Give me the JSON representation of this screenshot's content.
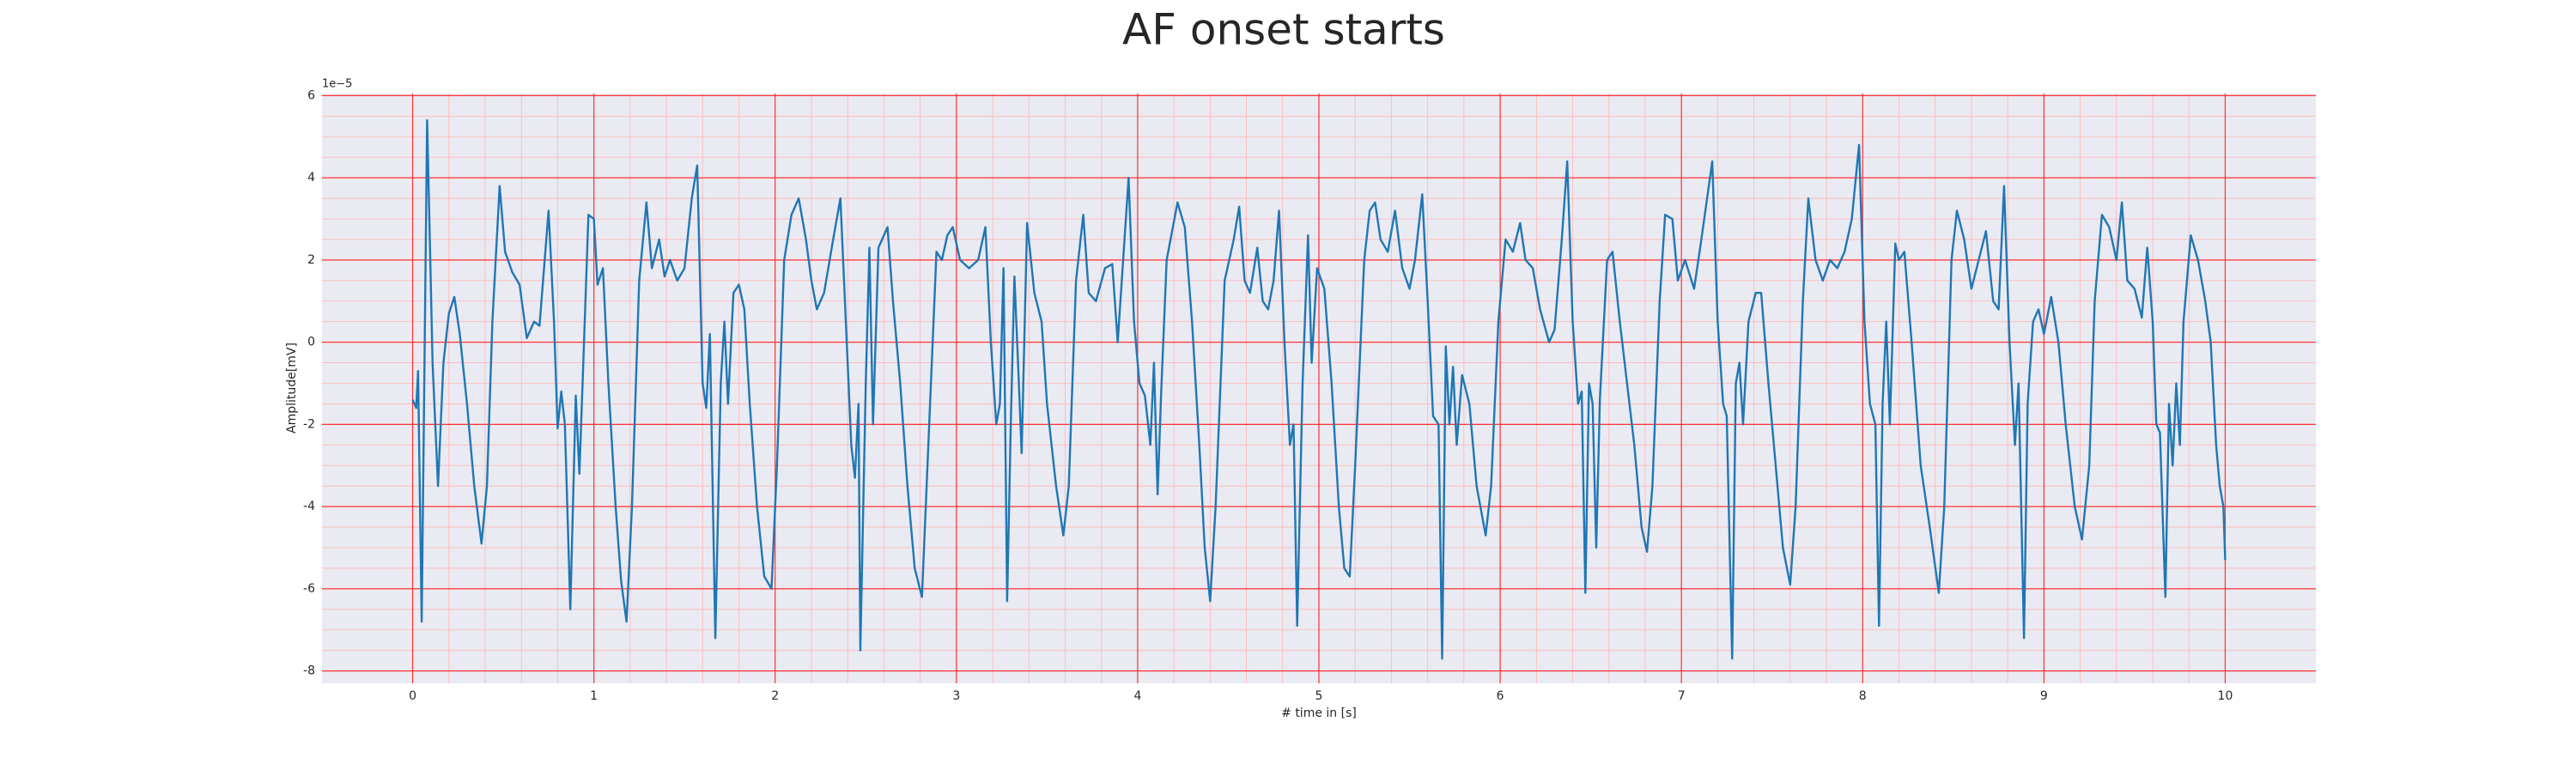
{
  "chart_data": {
    "type": "line",
    "title": "AF onset starts",
    "xlabel": "# time in [s]",
    "ylabel": "Amplitude[mV]",
    "y_offset_label": "1e−5",
    "color": "#1f77b4",
    "grid": true,
    "minor_grid": true,
    "xlim": [
      -0.5,
      10.5
    ],
    "ylim": [
      -8.3,
      6.05
    ],
    "xticks": [
      0,
      1,
      2,
      3,
      4,
      5,
      6,
      7,
      8,
      9,
      10
    ],
    "yticks": [
      -8,
      -6,
      -4,
      -2,
      0,
      2,
      4,
      6
    ],
    "x": [
      0,
      0.02,
      0.03,
      0.05,
      0.08,
      0.11,
      0.14,
      0.17,
      0.2,
      0.23,
      0.26,
      0.3,
      0.34,
      0.38,
      0.41,
      0.44,
      0.48,
      0.51,
      0.55,
      0.59,
      0.63,
      0.67,
      0.7,
      0.75,
      0.78,
      0.8,
      0.82,
      0.84,
      0.87,
      0.9,
      0.92,
      0.94,
      0.97,
      1.0,
      1.02,
      1.05,
      1.08,
      1.12,
      1.15,
      1.18,
      1.21,
      1.25,
      1.29,
      1.32,
      1.36,
      1.39,
      1.42,
      1.46,
      1.5,
      1.54,
      1.57,
      1.6,
      1.62,
      1.64,
      1.67,
      1.7,
      1.72,
      1.74,
      1.77,
      1.8,
      1.83,
      1.86,
      1.9,
      1.94,
      1.98,
      2.01,
      2.05,
      2.09,
      2.13,
      2.17,
      2.2,
      2.23,
      2.27,
      2.32,
      2.36,
      2.39,
      2.42,
      2.44,
      2.46,
      2.47,
      2.5,
      2.52,
      2.54,
      2.57,
      2.62,
      2.65,
      2.69,
      2.73,
      2.77,
      2.81,
      2.85,
      2.89,
      2.92,
      2.95,
      2.98,
      3.02,
      3.07,
      3.12,
      3.16,
      3.19,
      3.22,
      3.24,
      3.26,
      3.28,
      3.3,
      3.32,
      3.34,
      3.36,
      3.39,
      3.43,
      3.47,
      3.5,
      3.55,
      3.59,
      3.62,
      3.66,
      3.7,
      3.73,
      3.77,
      3.82,
      3.86,
      3.89,
      3.92,
      3.95,
      3.98,
      4.01,
      4.04,
      4.07,
      4.09,
      4.11,
      4.13,
      4.16,
      4.22,
      4.26,
      4.3,
      4.34,
      4.37,
      4.4,
      4.43,
      4.48,
      4.53,
      4.56,
      4.59,
      4.62,
      4.66,
      4.69,
      4.72,
      4.75,
      4.78,
      4.81,
      4.84,
      4.86,
      4.88,
      4.91,
      4.94,
      4.96,
      4.99,
      5.03,
      5.07,
      5.11,
      5.14,
      5.17,
      5.2,
      5.25,
      5.28,
      5.31,
      5.34,
      5.38,
      5.42,
      5.46,
      5.5,
      5.53,
      5.57,
      5.6,
      5.63,
      5.66,
      5.68,
      5.7,
      5.72,
      5.74,
      5.76,
      5.79,
      5.83,
      5.87,
      5.92,
      5.95,
      5.99,
      6.03,
      6.07,
      6.11,
      6.14,
      6.18,
      6.22,
      6.27,
      6.3,
      6.34,
      6.37,
      6.4,
      6.43,
      6.45,
      6.47,
      6.49,
      6.51,
      6.53,
      6.55,
      6.59,
      6.62,
      6.66,
      6.7,
      6.74,
      6.78,
      6.81,
      6.84,
      6.88,
      6.91,
      6.95,
      6.98,
      7.02,
      7.07,
      7.11,
      7.17,
      7.2,
      7.23,
      7.25,
      7.28,
      7.3,
      7.32,
      7.34,
      7.37,
      7.41,
      7.44,
      7.48,
      7.52,
      7.56,
      7.6,
      7.63,
      7.67,
      7.7,
      7.74,
      7.78,
      7.82,
      7.86,
      7.9,
      7.94,
      7.98,
      8.01,
      8.04,
      8.07,
      8.09,
      8.11,
      8.13,
      8.15,
      8.18,
      8.2,
      8.23,
      8.27,
      8.32,
      8.37,
      8.42,
      8.45,
      8.49,
      8.52,
      8.56,
      8.6,
      8.64,
      8.68,
      8.72,
      8.75,
      8.78,
      8.81,
      8.84,
      8.86,
      8.89,
      8.91,
      8.94,
      8.97,
      9.0,
      9.04,
      9.08,
      9.12,
      9.17,
      9.21,
      9.25,
      9.28,
      9.32,
      9.36,
      9.4,
      9.43,
      9.46,
      9.5,
      9.54,
      9.57,
      9.6,
      9.62,
      9.64,
      9.67,
      9.69,
      9.71,
      9.73,
      9.75,
      9.77,
      9.81,
      9.85,
      9.89,
      9.92,
      9.95,
      9.97,
      9.99,
      10.0
    ],
    "values": [
      -1.4,
      -1.6,
      -0.7,
      -6.8,
      5.4,
      -0.5,
      -3.5,
      -0.5,
      0.7,
      1.1,
      0.2,
      -1.5,
      -3.5,
      -4.9,
      -3.5,
      0.5,
      3.8,
      2.2,
      1.7,
      1.4,
      0.1,
      0.5,
      0.4,
      3.2,
      0.5,
      -2.1,
      -1.2,
      -2.0,
      -6.5,
      -1.3,
      -3.2,
      -0.7,
      3.1,
      3.0,
      1.4,
      1.8,
      -1.0,
      -4.0,
      -5.8,
      -6.8,
      -4.0,
      1.5,
      3.4,
      1.8,
      2.5,
      1.6,
      2.0,
      1.5,
      1.8,
      3.5,
      4.3,
      -1.0,
      -1.6,
      0.2,
      -7.2,
      -1.0,
      0.5,
      -1.5,
      1.2,
      1.4,
      0.8,
      -1.5,
      -4.0,
      -5.7,
      -6.0,
      -3.0,
      2.0,
      3.1,
      3.5,
      2.5,
      1.5,
      0.8,
      1.2,
      2.5,
      3.5,
      0.5,
      -2.5,
      -3.3,
      -1.5,
      -7.5,
      -1.0,
      2.3,
      -2.0,
      2.3,
      2.8,
      1.0,
      -1.0,
      -3.5,
      -5.5,
      -6.2,
      -2.0,
      2.2,
      2.0,
      2.6,
      2.8,
      2.0,
      1.8,
      2.0,
      2.8,
      0.0,
      -2.0,
      -1.5,
      1.8,
      -6.3,
      -2.0,
      1.6,
      -0.5,
      -2.7,
      2.9,
      1.2,
      0.5,
      -1.5,
      -3.5,
      -4.7,
      -3.5,
      1.5,
      3.1,
      1.2,
      1.0,
      1.8,
      1.9,
      0.0,
      2.0,
      4.0,
      0.5,
      -1.0,
      -1.3,
      -2.5,
      -0.5,
      -3.7,
      -1.2,
      2.0,
      3.4,
      2.8,
      0.5,
      -2.5,
      -5.0,
      -6.3,
      -4.0,
      1.5,
      2.5,
      3.3,
      1.5,
      1.2,
      2.3,
      1.0,
      0.8,
      1.5,
      3.2,
      0.0,
      -2.5,
      -2.0,
      -6.9,
      -1.0,
      2.6,
      -0.5,
      1.8,
      1.3,
      -1.0,
      -4.0,
      -5.5,
      -5.7,
      -3.0,
      2.0,
      3.2,
      3.4,
      2.5,
      2.2,
      3.2,
      1.8,
      1.3,
      2.0,
      3.6,
      1.0,
      -1.8,
      -2.0,
      -7.7,
      -0.1,
      -2.0,
      -0.6,
      -2.5,
      -0.8,
      -1.5,
      -3.5,
      -4.7,
      -3.5,
      0.5,
      2.5,
      2.2,
      2.9,
      2.0,
      1.8,
      0.8,
      0.0,
      0.3,
      2.5,
      4.4,
      0.5,
      -1.5,
      -1.2,
      -6.1,
      -1.0,
      -1.5,
      -5.0,
      -1.4,
      2.0,
      2.2,
      0.5,
      -1.0,
      -2.5,
      -4.5,
      -5.1,
      -3.5,
      1.0,
      3.1,
      3.0,
      1.5,
      2.0,
      1.3,
      2.5,
      4.4,
      0.5,
      -1.5,
      -1.8,
      -7.7,
      -1.0,
      -0.5,
      -2.0,
      0.5,
      1.2,
      1.2,
      -1.0,
      -3.0,
      -5.0,
      -5.9,
      -4.0,
      1.0,
      3.5,
      2.0,
      1.5,
      2.0,
      1.8,
      2.2,
      3.0,
      4.8,
      0.5,
      -1.5,
      -2.0,
      -6.9,
      -1.5,
      0.5,
      -2.0,
      2.4,
      2.0,
      2.2,
      0.0,
      -3.0,
      -4.5,
      -6.1,
      -4.0,
      2.0,
      3.2,
      2.5,
      1.3,
      2.0,
      2.7,
      1.0,
      0.8,
      3.8,
      0.0,
      -2.5,
      -1.0,
      -7.2,
      -1.5,
      0.5,
      0.8,
      0.2,
      1.1,
      0.0,
      -2.0,
      -4.0,
      -4.8,
      -3.0,
      1.0,
      3.1,
      2.8,
      2.0,
      3.4,
      1.5,
      1.3,
      0.6,
      2.3,
      0.5,
      -2.0,
      -2.2,
      -6.2,
      -1.5,
      -3.0,
      -1.0,
      -2.5,
      0.5,
      2.6,
      2.0,
      1.0,
      0.0,
      -2.5,
      -3.5,
      -4.0,
      -5.3
    ]
  }
}
